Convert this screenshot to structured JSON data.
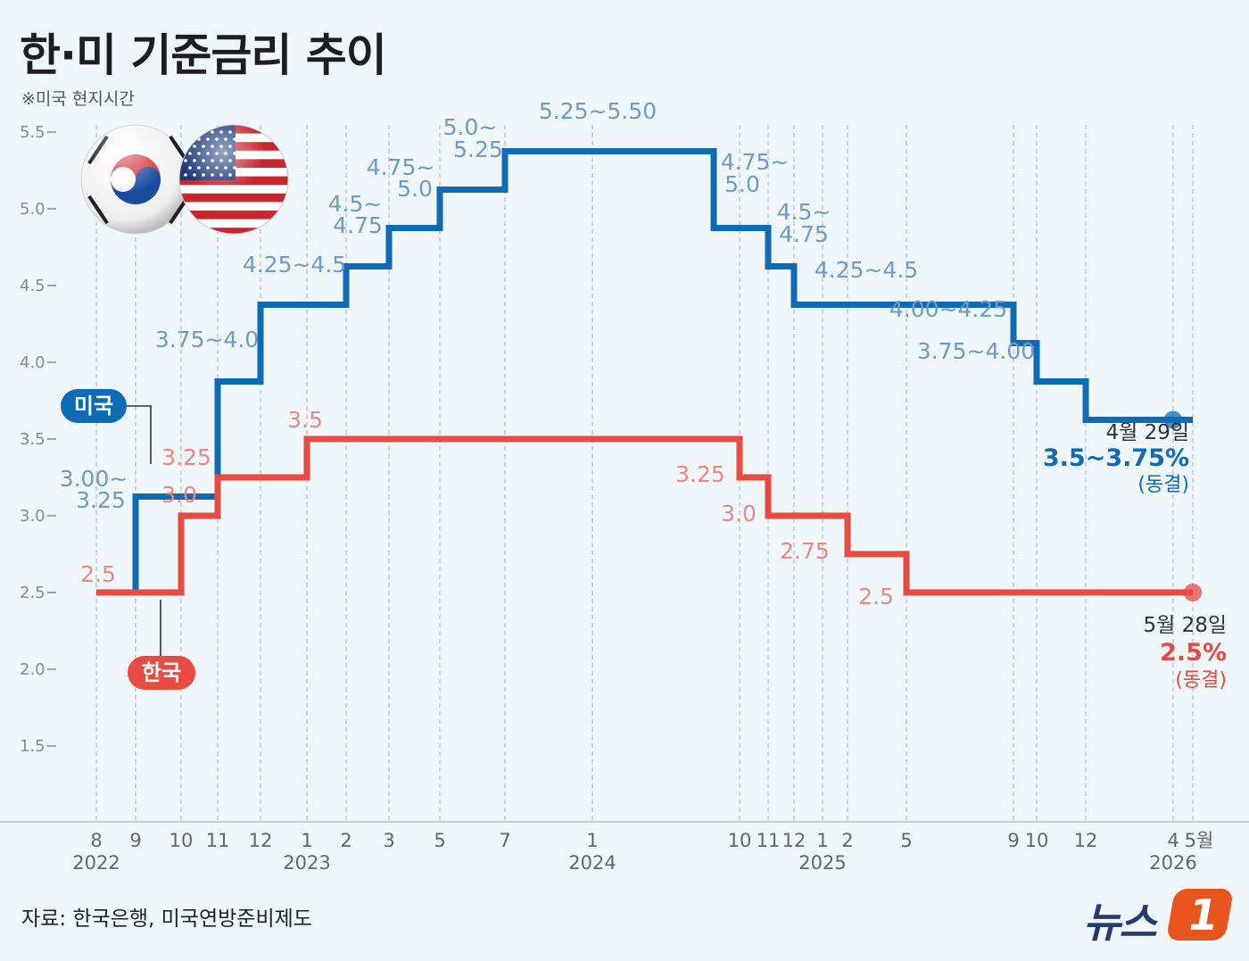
{
  "header": {
    "title": "한·미 기준금리 추이",
    "subtitle": "※미국 현지시간"
  },
  "footer": {
    "source": "자료: 한국은행, 미국연방준비제도",
    "logo_text": "뉴스",
    "logo_mark": "1"
  },
  "colors": {
    "us": "#0e6bb5",
    "kr": "#e84b42",
    "us_label": "#6e9cc6",
    "kr_label": "#ea8a80"
  },
  "chart_data": {
    "type": "line",
    "step": true,
    "grid": "vertical dashed",
    "ylim": [
      1.25,
      5.75
    ],
    "yticks": [
      "5.5",
      "5.0",
      "4.5",
      "4.0",
      "3.5",
      "3.0",
      "2.5",
      "2.0",
      "1.5"
    ],
    "xticks": [
      {
        "label": "8",
        "date": "2022-08"
      },
      {
        "label": "9",
        "date": "2022-09"
      },
      {
        "label": "10",
        "date": "2022-10"
      },
      {
        "label": "11",
        "date": "2022-11"
      },
      {
        "label": "12",
        "date": "2022-12"
      },
      {
        "label": "1",
        "date": "2023-01"
      },
      {
        "label": "2",
        "date": "2023-02"
      },
      {
        "label": "3",
        "date": "2023-03"
      },
      {
        "label": "5",
        "date": "2023-05"
      },
      {
        "label": "7",
        "date": "2023-07"
      },
      {
        "label": "1",
        "date": "2024-01"
      },
      {
        "label": "10",
        "date": "2024-10"
      },
      {
        "label": "11",
        "date": "2024-11"
      },
      {
        "label": "12",
        "date": "2024-12"
      },
      {
        "label": "1",
        "date": "2025-01"
      },
      {
        "label": "2",
        "date": "2025-02"
      },
      {
        "label": "5",
        "date": "2025-05"
      },
      {
        "label": "9",
        "date": "2025-09"
      },
      {
        "label": "10",
        "date": "2025-10"
      },
      {
        "label": "12",
        "date": "2025-12"
      },
      {
        "label": "4",
        "date": "2026-04"
      },
      {
        "label": "5월",
        "date": "2026-05"
      }
    ],
    "years": [
      {
        "label": "2022",
        "date": "2022-08"
      },
      {
        "label": "2023",
        "date": "2023-01"
      },
      {
        "label": "2024",
        "date": "2024-01"
      },
      {
        "label": "2025",
        "date": "2025-01"
      },
      {
        "label": "2026",
        "date": "2026-04"
      }
    ],
    "series": [
      {
        "name": "미국",
        "points": [
          {
            "date": "2022-09",
            "value": 3.125,
            "label": "3.00~3.25"
          },
          {
            "date": "2022-11",
            "value": 3.875,
            "label": "3.75~4.0"
          },
          {
            "date": "2022-12",
            "value": 4.375,
            "label": "4.25~4.5"
          },
          {
            "date": "2023-02",
            "value": 4.625,
            "label": "4.5~4.75"
          },
          {
            "date": "2023-03",
            "value": 4.875,
            "label": "4.75~5.0"
          },
          {
            "date": "2023-05",
            "value": 5.125,
            "label": "5.0~5.25"
          },
          {
            "date": "2023-07",
            "value": 5.375,
            "label": "5.25~5.50"
          },
          {
            "date": "2024-09",
            "value": 4.875,
            "label": "4.75~5.0"
          },
          {
            "date": "2024-11",
            "value": 4.625,
            "label": "4.5~4.75"
          },
          {
            "date": "2024-12",
            "value": 4.375,
            "label": "4.25~4.5"
          },
          {
            "date": "2025-09",
            "value": 4.125,
            "label": "4.00~4.25"
          },
          {
            "date": "2025-10",
            "value": 3.875,
            "label": "3.75~4.00"
          },
          {
            "date": "2025-12",
            "value": 3.625,
            "label": "3.5~3.75%"
          }
        ],
        "end": {
          "date": "2026-04",
          "date_label": "4월 29일",
          "value_label": "3.5~3.75%",
          "note": "(동결)"
        }
      },
      {
        "name": "한국",
        "points": [
          {
            "date": "2022-08",
            "value": 2.5,
            "label": "2.5"
          },
          {
            "date": "2022-10",
            "value": 3.0,
            "label": "3.0"
          },
          {
            "date": "2022-11",
            "value": 3.25,
            "label": "3.25"
          },
          {
            "date": "2023-01",
            "value": 3.5,
            "label": "3.5"
          },
          {
            "date": "2024-10",
            "value": 3.25,
            "label": "3.25"
          },
          {
            "date": "2024-11",
            "value": 3.0,
            "label": "3.0"
          },
          {
            "date": "2025-02",
            "value": 2.75,
            "label": "2.75"
          },
          {
            "date": "2025-05",
            "value": 2.5,
            "label": "2.5%"
          }
        ],
        "end": {
          "date": "2026-05",
          "date_label": "5월 28일",
          "value_label": "2.5%",
          "note": "(동결)"
        }
      }
    ],
    "us_text": {
      "us0a": "3.00~",
      "us0b": "3.25",
      "us1": "3.75~4.0",
      "us2": "4.25~4.5",
      "us3a": "4.5~",
      "us3b": "4.75",
      "us4a": "4.75~",
      "us4b": "5.0",
      "us5a": "5.0~",
      "us5b": "5.25",
      "us6": "5.25~5.50",
      "us7a": "4.75~",
      "us7b": "5.0",
      "us8a": "4.5~",
      "us8b": "4.75",
      "us9": "4.25~4.5",
      "us10": "4.00~4.25",
      "us11": "3.75~4.00"
    },
    "kr_text": {
      "kr0": "2.5",
      "kr1": "3.0",
      "kr2": "3.25",
      "kr3": "3.5",
      "kr4": "3.25",
      "kr5": "3.0",
      "kr6": "2.75",
      "kr7": "2.5"
    }
  }
}
